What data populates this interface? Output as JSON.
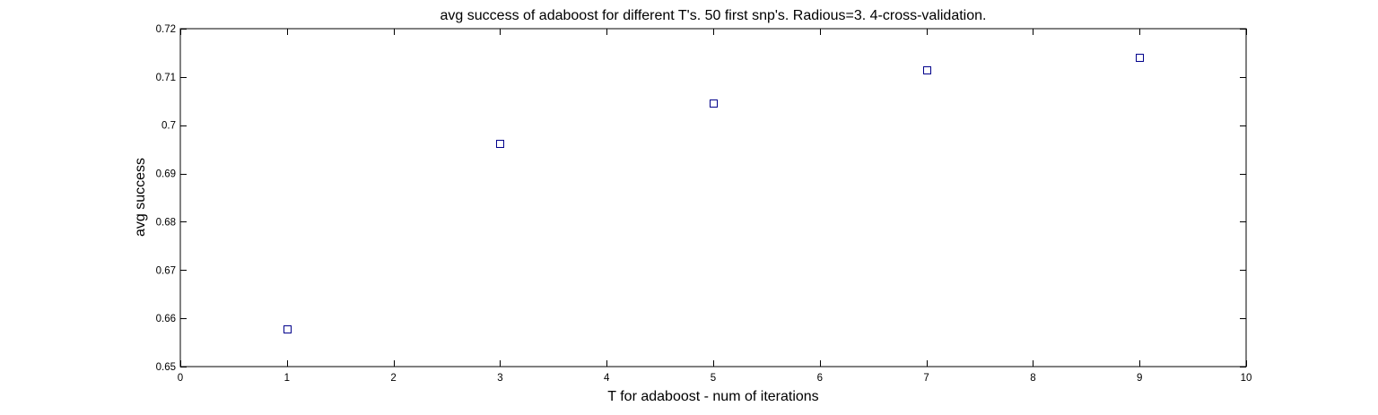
{
  "chart_data": {
    "type": "scatter",
    "title": "avg success of adaboost for different T's. 50 first snp's. Radious=3. 4-cross-validation.",
    "xlabel": "T for adaboost - num of iterations",
    "ylabel": "avg success",
    "xlim": [
      0,
      10
    ],
    "ylim": [
      0.65,
      0.72
    ],
    "xticks": [
      "0",
      "1",
      "2",
      "3",
      "4",
      "5",
      "6",
      "7",
      "8",
      "9",
      "10"
    ],
    "yticks": [
      "0.65",
      "0.66",
      "0.67",
      "0.68",
      "0.69",
      "0.7",
      "0.71",
      "0.72"
    ],
    "grid": false,
    "marker": "square",
    "marker_color": "#00008b",
    "points": [
      {
        "x": 1,
        "y": 0.6578
      },
      {
        "x": 3,
        "y": 0.6963
      },
      {
        "x": 5,
        "y": 0.7045
      },
      {
        "x": 7,
        "y": 0.7115
      },
      {
        "x": 9,
        "y": 0.7141
      }
    ]
  }
}
